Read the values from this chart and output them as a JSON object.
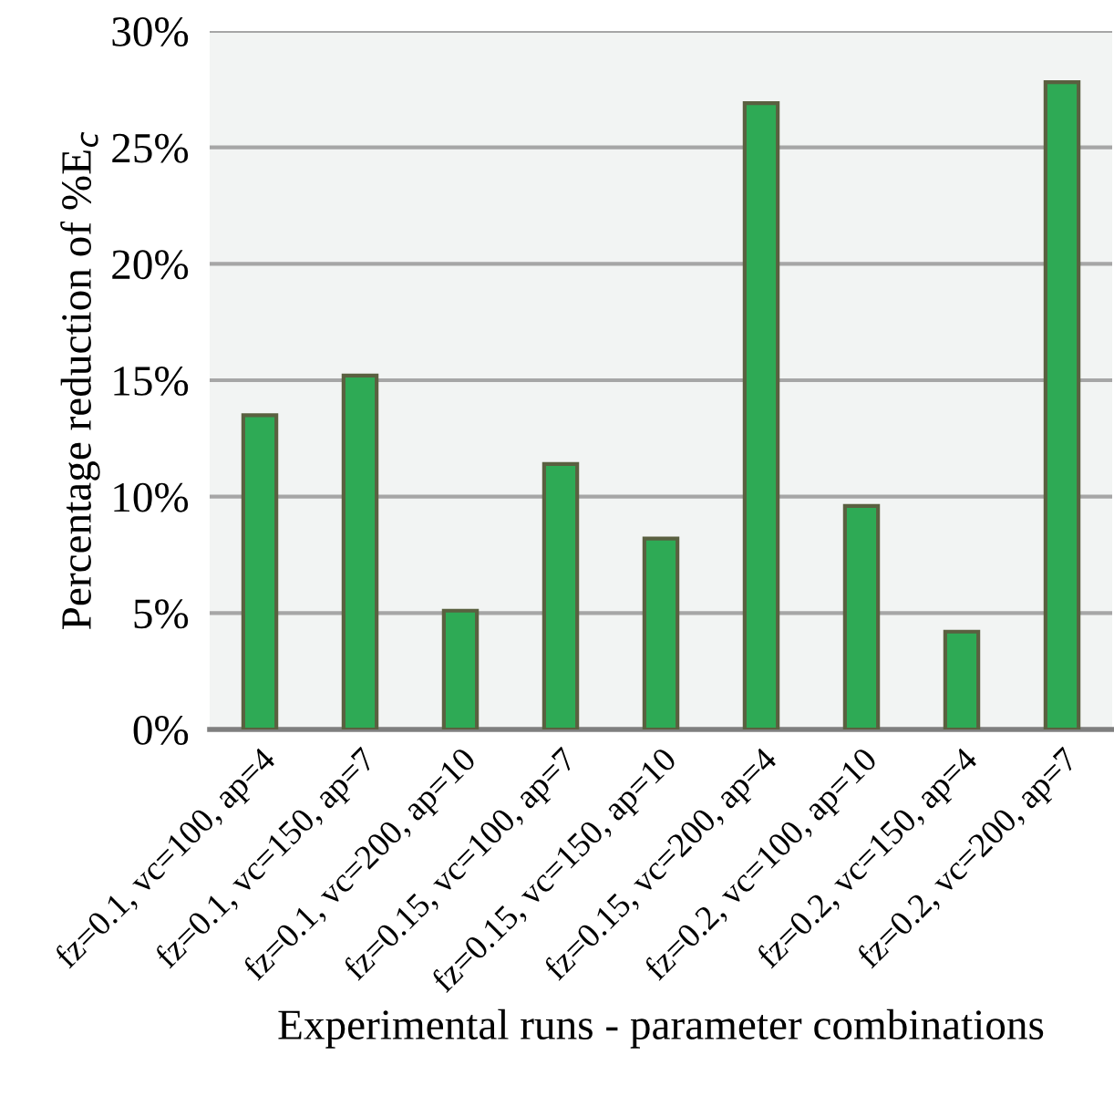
{
  "chart_data": {
    "type": "bar",
    "xlabel": "Experimental runs - parameter combinations",
    "ylabel": "Percentage reduction of %E$_{c}$",
    "categories": [
      "fz=0.1, vc=100, ap=4",
      "fz=0.1, vc=150, ap=7",
      "fz=0.1, vc=200, ap=10",
      "fz=0.15, vc=100, ap=7",
      "fz=0.15, vc=150, ap=10",
      "fz=0.15, vc=200, ap=4",
      "fz=0.2, vc=100, ap=10",
      "fz=0.2, vc=150, ap=4",
      "fz=0.2, vc=200, ap=7"
    ],
    "values": [
      13.5,
      15.2,
      5.1,
      11.4,
      8.2,
      26.9,
      9.6,
      4.2,
      27.8
    ],
    "color": "#2eaa55",
    "ylim": [
      0,
      30
    ],
    "yticks": [
      {
        "value": 0,
        "label": "0%"
      },
      {
        "value": 5,
        "label": "5%"
      },
      {
        "value": 10,
        "label": "10%"
      },
      {
        "value": 15,
        "label": "15%"
      },
      {
        "value": 20,
        "label": "20%"
      },
      {
        "value": 25,
        "label": "25%"
      },
      {
        "value": 30,
        "label": "30%"
      }
    ],
    "grid": "y",
    "legend": false
  }
}
